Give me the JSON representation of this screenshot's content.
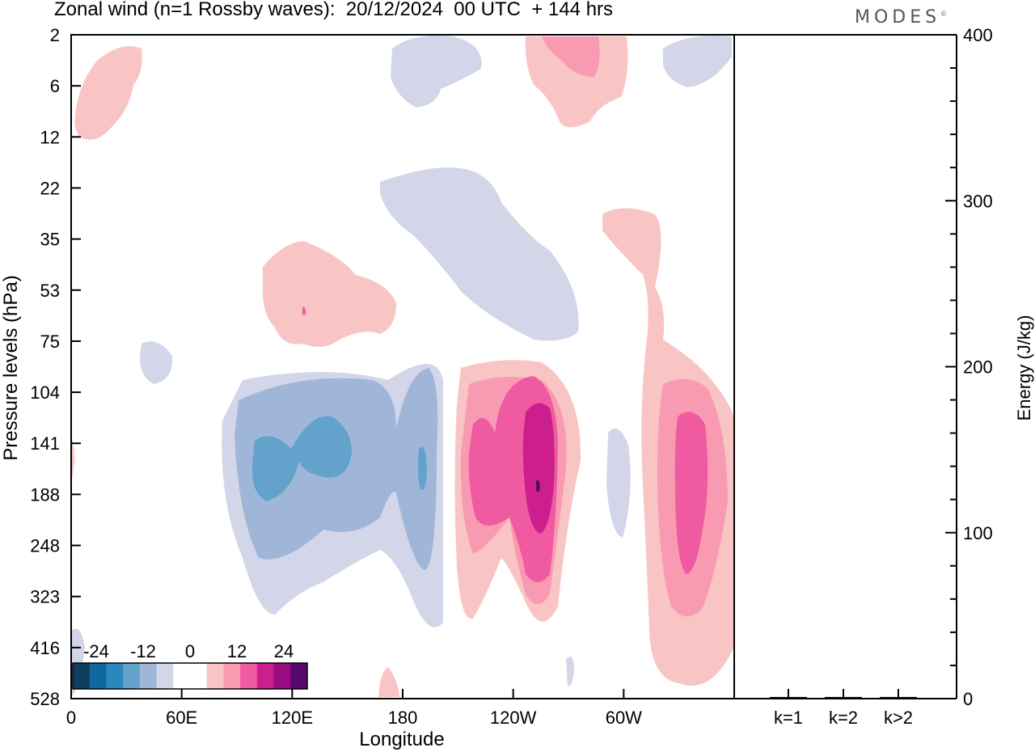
{
  "title": "Zonal wind (n=1 Rossby waves):  20/12/2024  00 UTC  + 144 hrs",
  "brand": "MODES",
  "brand_mark": "©",
  "colors": {
    "neg": [
      "#0e3e5d",
      "#0f679e",
      "#2a87c0",
      "#62a2cb",
      "#a0b6d9",
      "#d3d6e8"
    ],
    "zero": "#ffffff",
    "pos": [
      "#f9c5c4",
      "#f99ab3",
      "#f05aa0",
      "#cc1e8c",
      "#9a0d80",
      "#560a6b"
    ]
  },
  "chart_data": [
    {
      "type": "heatmap",
      "xlabel": "Longitude",
      "ylabel": "Pressure levels (hPa)",
      "x_ticks": [
        "0",
        "60E",
        "120E",
        "180",
        "120W",
        "60W"
      ],
      "x_tick_values": [
        0,
        60,
        120,
        180,
        240,
        300
      ],
      "xlim": [
        0,
        360
      ],
      "y_ticks": [
        "2",
        "6",
        "12",
        "22",
        "35",
        "53",
        "75",
        "104",
        "141",
        "188",
        "248",
        "323",
        "416",
        "528"
      ],
      "colorbar": {
        "labels": [
          "-24",
          "-12",
          "0",
          "12",
          "24"
        ],
        "label_values": [
          -24,
          -12,
          0,
          12,
          24
        ],
        "range": [
          -30,
          30
        ],
        "step": 5
      },
      "features": [
        {
          "sign": "neg",
          "lon": 120,
          "pressure": 141,
          "max_abs": 19
        },
        {
          "sign": "neg",
          "lon": 190,
          "pressure": 141,
          "max_abs": 15
        },
        {
          "sign": "pos",
          "lon": 230,
          "pressure": 141,
          "max_abs": 15
        },
        {
          "sign": "pos",
          "lon": 255,
          "pressure": 160,
          "max_abs": 27
        },
        {
          "sign": "pos",
          "lon": 320,
          "pressure": 160,
          "max_abs": 16
        },
        {
          "sign": "pos",
          "lon": 120,
          "pressure": 53,
          "max_abs": 9
        },
        {
          "sign": "neg",
          "lon": 220,
          "pressure": 35,
          "max_abs": 5
        },
        {
          "sign": "pos",
          "lon": 270,
          "pressure": 4,
          "max_abs": 10
        }
      ]
    },
    {
      "type": "bar",
      "ylabel": "Energy (J/kg)",
      "categories": [
        "k=1",
        "k=2",
        "k>2"
      ],
      "values": [
        1,
        1,
        1
      ],
      "y_ticks": [
        "0",
        "100",
        "200",
        "300",
        "400"
      ],
      "y_tick_values": [
        0,
        100,
        200,
        300,
        400
      ],
      "ylim": [
        0,
        400
      ]
    }
  ]
}
